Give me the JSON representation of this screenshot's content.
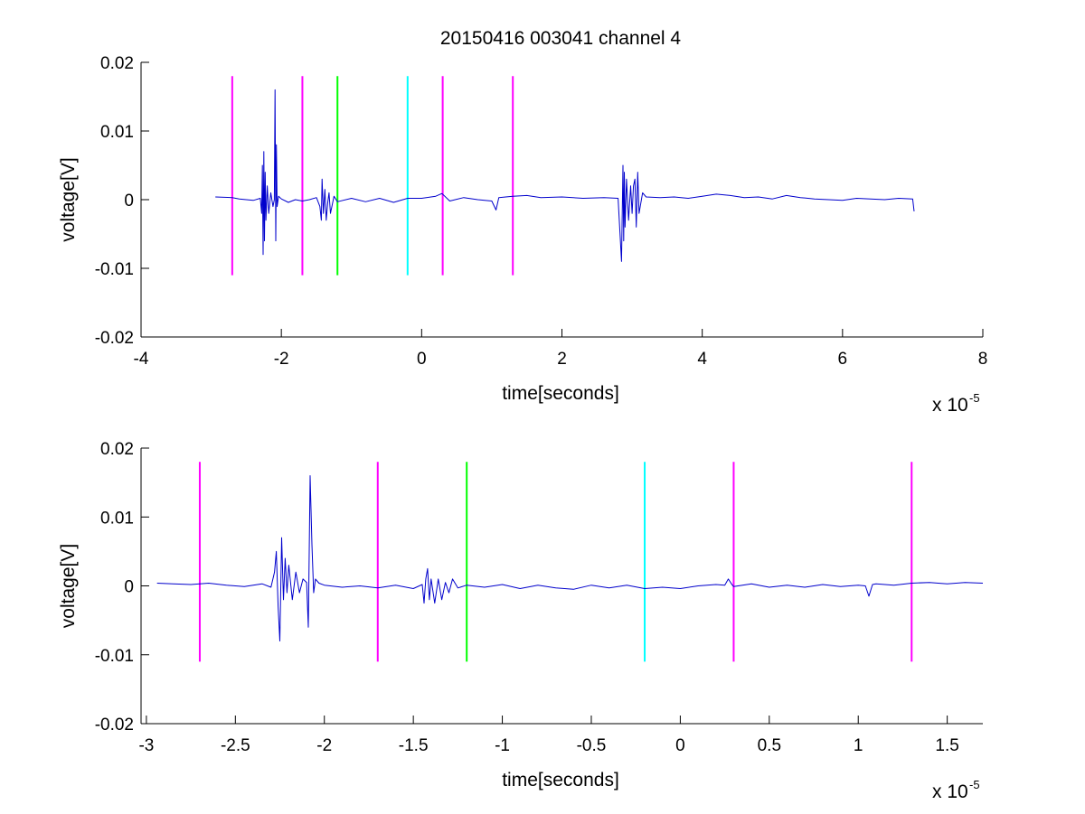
{
  "figure": {
    "title": "20150416 003041 channel 4"
  },
  "chart_data": [
    {
      "type": "line",
      "title": "20150416 003041 channel 4",
      "xlabel": "time[seconds]",
      "ylabel": "voltage[V]",
      "x_multiplier_base": "x 10",
      "x_multiplier_exp": "-5",
      "xlim": [
        -4,
        8
      ],
      "ylim": [
        -0.02,
        0.02
      ],
      "xticks": [
        -4,
        -2,
        0,
        2,
        4,
        6,
        8
      ],
      "xtick_labels": [
        "-4",
        "-2",
        "0",
        "2",
        "4",
        "6",
        "8"
      ],
      "yticks": [
        0.02,
        0.01,
        0,
        -0.01,
        -0.02
      ],
      "ytick_labels": [
        "0.02",
        "0.01",
        "0",
        "-0.01",
        "-0.02"
      ],
      "grid": false,
      "series": [
        {
          "color": "#0000cc",
          "x": [
            -2.94,
            -2.7,
            -2.6,
            -2.4,
            -2.3,
            -2.28,
            -2.27,
            -2.26,
            -2.25,
            -2.24,
            -2.23,
            -2.22,
            -2.2,
            -2.18,
            -2.15,
            -2.12,
            -2.1,
            -2.09,
            -2.08,
            -2.07,
            -2.06,
            -2.04,
            -2.0,
            -1.9,
            -1.8,
            -1.7,
            -1.6,
            -1.5,
            -1.45,
            -1.43,
            -1.42,
            -1.4,
            -1.38,
            -1.36,
            -1.34,
            -1.32,
            -1.3,
            -1.25,
            -1.2,
            -1.0,
            -0.8,
            -0.6,
            -0.4,
            -0.2,
            0.0,
            0.2,
            0.29,
            0.4,
            0.6,
            0.8,
            1.0,
            1.06,
            1.1,
            1.2,
            1.3,
            1.5,
            1.7,
            2.0,
            2.3,
            2.6,
            2.8,
            2.85,
            2.87,
            2.88,
            2.89,
            2.9,
            2.92,
            2.95,
            2.98,
            3.0,
            3.02,
            3.04,
            3.06,
            3.08,
            3.1,
            3.15,
            3.2,
            3.4,
            3.6,
            3.8,
            4.0,
            4.2,
            4.4,
            4.6,
            4.8,
            5.0,
            5.2,
            5.4,
            5.6,
            5.8,
            6.0,
            6.2,
            6.4,
            6.6,
            6.8,
            7.0,
            7.02
          ],
          "y": [
            0.0004,
            0.0003,
            0.0001,
            -0.0001,
            0.0002,
            -0.002,
            0.005,
            -0.008,
            0.007,
            -0.006,
            0.004,
            -0.003,
            0.002,
            -0.002,
            0.001,
            -0.001,
            0.0,
            0.016,
            -0.006,
            0.008,
            -0.001,
            0.0005,
            0.0001,
            -0.0004,
            0.0,
            -0.0002,
            0.0,
            0.0003,
            -0.001,
            -0.003,
            0.003,
            -0.002,
            0.0015,
            -0.003,
            -0.0005,
            0.001,
            -0.002,
            0.0005,
            -0.0003,
            0.0002,
            -0.0003,
            0.0002,
            -0.0004,
            0.0002,
            0.0002,
            0.0005,
            0.0009,
            -0.0002,
            0.0003,
            0.0,
            -0.0002,
            -0.0015,
            0.0003,
            0.0004,
            0.0005,
            0.0006,
            0.0003,
            0.0004,
            0.0002,
            0.0003,
            0.0002,
            -0.009,
            0.005,
            -0.006,
            0.004,
            -0.004,
            0.003,
            -0.003,
            0.002,
            -0.002,
            0.002,
            0.003,
            -0.004,
            0.004,
            -0.002,
            0.001,
            0.0004,
            0.0003,
            0.0004,
            0.0002,
            0.0005,
            0.0008,
            0.0006,
            0.0003,
            0.0004,
            0.0001,
            0.0006,
            0.0003,
            0.0001,
            0.0,
            -0.0001,
            0.0002,
            0.0001,
            0.0,
            0.0002,
            0.0001,
            -0.0017
          ]
        }
      ],
      "markers": [
        {
          "x": -2.7,
          "y_range": [
            -0.011,
            0.018
          ],
          "color": "#ff00ff"
        },
        {
          "x": -1.7,
          "y_range": [
            -0.011,
            0.018
          ],
          "color": "#ff00ff"
        },
        {
          "x": -1.2,
          "y_range": [
            -0.011,
            0.018
          ],
          "color": "#00ff00"
        },
        {
          "x": -0.2,
          "y_range": [
            -0.011,
            0.018
          ],
          "color": "#00ffff"
        },
        {
          "x": 0.3,
          "y_range": [
            -0.011,
            0.018
          ],
          "color": "#ff00ff"
        },
        {
          "x": 1.3,
          "y_range": [
            -0.011,
            0.018
          ],
          "color": "#ff00ff"
        }
      ]
    },
    {
      "type": "line",
      "title": "",
      "xlabel": "time[seconds]",
      "ylabel": "voltage[V]",
      "x_multiplier_base": "x 10",
      "x_multiplier_exp": "-5",
      "xlim": [
        -3.03,
        1.7
      ],
      "ylim": [
        -0.02,
        0.02
      ],
      "xticks": [
        -3,
        -2.5,
        -2,
        -1.5,
        -1,
        -0.5,
        0,
        0.5,
        1,
        1.5
      ],
      "xtick_labels": [
        "-3",
        "-2.5",
        "-2",
        "-1.5",
        "-1",
        "-0.5",
        "0",
        "0.5",
        "1",
        "1.5"
      ],
      "yticks": [
        0.02,
        0.01,
        0,
        -0.01,
        -0.02
      ],
      "ytick_labels": [
        "0.02",
        "0.01",
        "0",
        "-0.01",
        "-0.02"
      ],
      "grid": false,
      "series": [
        {
          "color": "#0000cc",
          "x": [
            -2.94,
            -2.85,
            -2.75,
            -2.65,
            -2.55,
            -2.45,
            -2.35,
            -2.3,
            -2.28,
            -2.27,
            -2.26,
            -2.25,
            -2.24,
            -2.23,
            -2.22,
            -2.21,
            -2.2,
            -2.18,
            -2.16,
            -2.14,
            -2.12,
            -2.1,
            -2.09,
            -2.08,
            -2.07,
            -2.06,
            -2.05,
            -2.03,
            -2.0,
            -1.9,
            -1.8,
            -1.7,
            -1.6,
            -1.5,
            -1.45,
            -1.44,
            -1.43,
            -1.42,
            -1.41,
            -1.4,
            -1.38,
            -1.36,
            -1.34,
            -1.32,
            -1.3,
            -1.28,
            -1.25,
            -1.2,
            -1.1,
            -1.0,
            -0.9,
            -0.8,
            -0.7,
            -0.6,
            -0.5,
            -0.4,
            -0.3,
            -0.2,
            -0.1,
            0.0,
            0.1,
            0.2,
            0.25,
            0.27,
            0.29,
            0.3,
            0.4,
            0.5,
            0.6,
            0.7,
            0.8,
            0.9,
            1.0,
            1.04,
            1.06,
            1.08,
            1.1,
            1.2,
            1.3,
            1.4,
            1.5,
            1.6,
            1.7
          ],
          "y": [
            0.0004,
            0.0003,
            0.0002,
            0.0004,
            0.0001,
            -0.0001,
            0.0003,
            -0.0002,
            0.002,
            0.005,
            -0.003,
            -0.008,
            0.007,
            -0.002,
            0.004,
            -0.001,
            0.003,
            -0.002,
            0.002,
            -0.001,
            0.001,
            0.0005,
            -0.006,
            0.016,
            0.006,
            -0.001,
            0.001,
            0.0004,
            0.0001,
            -0.0002,
            0.0,
            -0.0003,
            0.0001,
            -0.0004,
            0.0002,
            -0.0025,
            0.001,
            0.0025,
            -0.002,
            0.001,
            -0.0025,
            0.001,
            -0.002,
            0.0005,
            -0.001,
            0.001,
            -0.0003,
            0.0001,
            -0.0002,
            0.0002,
            -0.0004,
            0.0001,
            -0.0003,
            -0.0005,
            0.0001,
            -0.0003,
            0.0001,
            -0.0004,
            -0.0002,
            -0.0004,
            0.0,
            0.0002,
            0.0001,
            0.001,
            0.0002,
            -0.0001,
            0.0003,
            -0.0002,
            0.0001,
            -0.0002,
            0.0002,
            -0.0001,
            0.0001,
            0.0,
            -0.0015,
            0.0002,
            0.0003,
            0.0001,
            0.0004,
            0.0005,
            0.0003,
            0.0005,
            0.0004
          ]
        }
      ],
      "markers": [
        {
          "x": -2.7,
          "y_range": [
            -0.011,
            0.018
          ],
          "color": "#ff00ff"
        },
        {
          "x": -1.7,
          "y_range": [
            -0.011,
            0.018
          ],
          "color": "#ff00ff"
        },
        {
          "x": -1.2,
          "y_range": [
            -0.011,
            0.018
          ],
          "color": "#00ff00"
        },
        {
          "x": -0.2,
          "y_range": [
            -0.011,
            0.018
          ],
          "color": "#00ffff"
        },
        {
          "x": 0.3,
          "y_range": [
            -0.011,
            0.018
          ],
          "color": "#ff00ff"
        },
        {
          "x": 1.3,
          "y_range": [
            -0.011,
            0.018
          ],
          "color": "#ff00ff"
        }
      ]
    }
  ]
}
